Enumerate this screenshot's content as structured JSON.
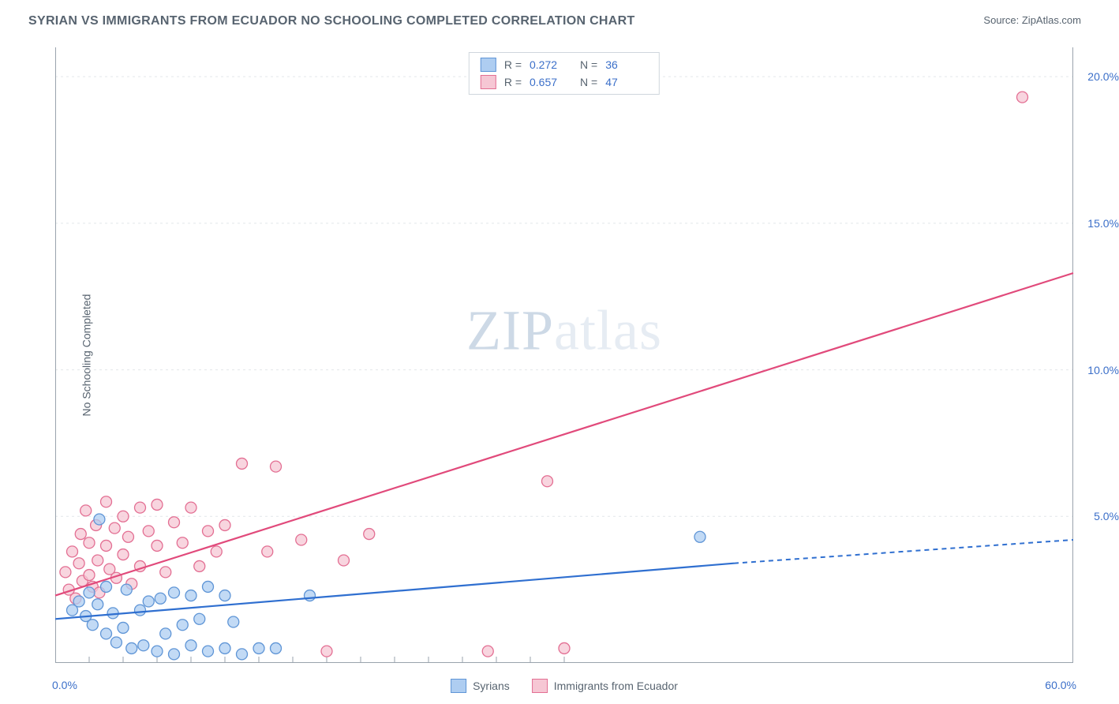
{
  "title": "SYRIAN VS IMMIGRANTS FROM ECUADOR NO SCHOOLING COMPLETED CORRELATION CHART",
  "source_label": "Source:",
  "source_name": "ZipAtlas.com",
  "watermark_a": "ZIP",
  "watermark_b": "atlas",
  "chart": {
    "type": "scatter",
    "ylabel": "No Schooling Completed",
    "xlim": [
      0,
      60
    ],
    "ylim": [
      0,
      21
    ],
    "xlabel_min": "0.0%",
    "xlabel_max": "60.0%",
    "yticks": [
      {
        "v": 5,
        "label": "5.0%"
      },
      {
        "v": 10,
        "label": "10.0%"
      },
      {
        "v": 15,
        "label": "15.0%"
      },
      {
        "v": 20,
        "label": "20.0%"
      }
    ],
    "xticks_minor": [
      2,
      4,
      6,
      8,
      10,
      12,
      14,
      16,
      18,
      20,
      22,
      24,
      26,
      28,
      30
    ],
    "grid_color": "#e2e6ea",
    "axis_color": "#9aa3ad",
    "marker_radius": 7,
    "series": [
      {
        "name": "Syrians",
        "legend_label": "Syrians",
        "fill": "#aecdf1",
        "stroke": "#5f95d6",
        "line_color": "#2f6fd0",
        "r": 0.272,
        "n": 36,
        "trend": {
          "x1": 0,
          "y1": 1.5,
          "x2_solid": 40,
          "y2_solid": 3.4,
          "x2_dash": 60,
          "y2_dash": 4.2
        },
        "points": [
          [
            1.0,
            1.8
          ],
          [
            1.4,
            2.1
          ],
          [
            1.8,
            1.6
          ],
          [
            2.0,
            2.4
          ],
          [
            2.2,
            1.3
          ],
          [
            2.5,
            2.0
          ],
          [
            2.6,
            4.9
          ],
          [
            3.0,
            1.0
          ],
          [
            3.0,
            2.6
          ],
          [
            3.4,
            1.7
          ],
          [
            3.6,
            0.7
          ],
          [
            4.0,
            1.2
          ],
          [
            4.2,
            2.5
          ],
          [
            4.5,
            0.5
          ],
          [
            5.0,
            1.8
          ],
          [
            5.2,
            0.6
          ],
          [
            5.5,
            2.1
          ],
          [
            6.0,
            0.4
          ],
          [
            6.2,
            2.2
          ],
          [
            6.5,
            1.0
          ],
          [
            7.0,
            2.4
          ],
          [
            7.0,
            0.3
          ],
          [
            7.5,
            1.3
          ],
          [
            8.0,
            2.3
          ],
          [
            8.0,
            0.6
          ],
          [
            8.5,
            1.5
          ],
          [
            9.0,
            2.6
          ],
          [
            9.0,
            0.4
          ],
          [
            10.0,
            2.3
          ],
          [
            10.0,
            0.5
          ],
          [
            10.5,
            1.4
          ],
          [
            11.0,
            0.3
          ],
          [
            12.0,
            0.5
          ],
          [
            13.0,
            0.5
          ],
          [
            15.0,
            2.3
          ],
          [
            38.0,
            4.3
          ]
        ]
      },
      {
        "name": "ImmigrantsFromEcuador",
        "legend_label": "Immigrants from Ecuador",
        "fill": "#f6c7d4",
        "stroke": "#e36f93",
        "line_color": "#e14a7b",
        "r": 0.657,
        "n": 47,
        "trend": {
          "x1": 0,
          "y1": 2.3,
          "x2_solid": 60,
          "y2_solid": 13.3,
          "x2_dash": 60,
          "y2_dash": 13.3
        },
        "points": [
          [
            0.6,
            3.1
          ],
          [
            0.8,
            2.5
          ],
          [
            1.0,
            3.8
          ],
          [
            1.2,
            2.2
          ],
          [
            1.4,
            3.4
          ],
          [
            1.5,
            4.4
          ],
          [
            1.6,
            2.8
          ],
          [
            1.8,
            5.2
          ],
          [
            2.0,
            3.0
          ],
          [
            2.0,
            4.1
          ],
          [
            2.2,
            2.6
          ],
          [
            2.4,
            4.7
          ],
          [
            2.5,
            3.5
          ],
          [
            2.6,
            2.4
          ],
          [
            3.0,
            4.0
          ],
          [
            3.0,
            5.5
          ],
          [
            3.2,
            3.2
          ],
          [
            3.5,
            4.6
          ],
          [
            3.6,
            2.9
          ],
          [
            4.0,
            5.0
          ],
          [
            4.0,
            3.7
          ],
          [
            4.3,
            4.3
          ],
          [
            4.5,
            2.7
          ],
          [
            5.0,
            5.3
          ],
          [
            5.0,
            3.3
          ],
          [
            5.5,
            4.5
          ],
          [
            6.0,
            4.0
          ],
          [
            6.0,
            5.4
          ],
          [
            6.5,
            3.1
          ],
          [
            7.0,
            4.8
          ],
          [
            7.5,
            4.1
          ],
          [
            8.0,
            5.3
          ],
          [
            8.5,
            3.3
          ],
          [
            9.0,
            4.5
          ],
          [
            9.5,
            3.8
          ],
          [
            10.0,
            4.7
          ],
          [
            11.0,
            6.8
          ],
          [
            12.5,
            3.8
          ],
          [
            13.0,
            6.7
          ],
          [
            14.5,
            4.2
          ],
          [
            16.0,
            0.4
          ],
          [
            17.0,
            3.5
          ],
          [
            18.5,
            4.4
          ],
          [
            25.5,
            0.4
          ],
          [
            29.0,
            6.2
          ],
          [
            30.0,
            0.5
          ],
          [
            57.0,
            19.3
          ]
        ]
      }
    ]
  }
}
